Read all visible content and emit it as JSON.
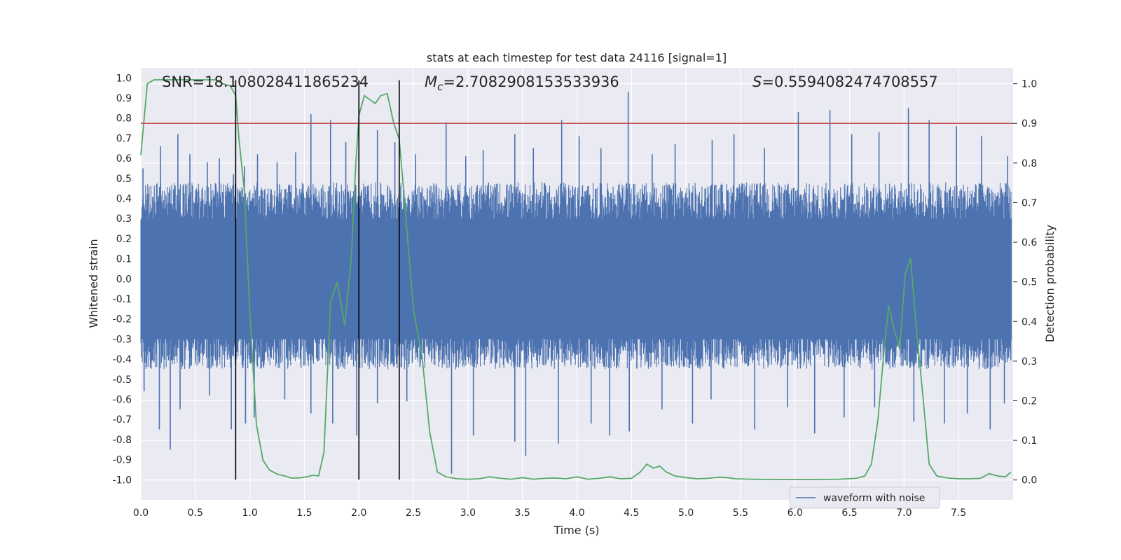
{
  "chart_data": {
    "type": "line",
    "title": "stats at each timestep for test data 24116 [signal=1]",
    "xlabel": "Time (s)",
    "ylabel": "Whitened strain",
    "y2label": "Detection probability",
    "xlim": [
      0,
      8
    ],
    "ylim": [
      -1.1,
      1.05
    ],
    "y2lim": [
      -0.05,
      1.04
    ],
    "xticks": [
      "0.0",
      "0.5",
      "1.0",
      "1.5",
      "2.0",
      "2.5",
      "3.0",
      "3.5",
      "4.0",
      "4.5",
      "5.0",
      "5.5",
      "6.0",
      "6.5",
      "7.0",
      "7.5"
    ],
    "yticks": [
      "1.0",
      "0.9",
      "0.8",
      "0.7",
      "0.6",
      "0.5",
      "0.4",
      "0.3",
      "0.2",
      "0.1",
      "0.0",
      "-0.1",
      "-0.2",
      "-0.3",
      "-0.4",
      "-0.5",
      "-0.6",
      "-0.7",
      "-0.8",
      "-0.9",
      "-1.0"
    ],
    "y2ticks": [
      "1.0",
      "0.9",
      "0.8",
      "0.7",
      "0.6",
      "0.5",
      "0.4",
      "0.3",
      "0.2",
      "0.1",
      "0.0"
    ],
    "grid": true,
    "legend_position": "bottom-right",
    "annotations": {
      "snr": "SNR=18.108028411865234",
      "mc_symbol": "M",
      "mc_sub": "c",
      "mc_value": "=2.7082908153533936",
      "s_symbol": "S",
      "s_value": "=0.5594082474708557"
    },
    "threshold": {
      "y2": 0.9,
      "color": "#c44e52"
    },
    "vlines": [
      0.87,
      2.0,
      2.37
    ],
    "colors": {
      "waveform": "#4c72b0",
      "probability": "#55a868",
      "threshold": "#c44e52",
      "vline": "#000000"
    },
    "series": [
      {
        "name": "waveform with noise",
        "envelope": {
          "dense_range": [
            -0.45,
            0.48
          ],
          "spike_peaks_high": [
            {
              "x": 0.02,
              "y": 0.55
            },
            {
              "x": 0.18,
              "y": 0.66
            },
            {
              "x": 0.34,
              "y": 0.72
            },
            {
              "x": 0.45,
              "y": 0.62
            },
            {
              "x": 0.61,
              "y": 0.58
            },
            {
              "x": 0.72,
              "y": 0.6
            },
            {
              "x": 0.85,
              "y": 0.52
            },
            {
              "x": 0.95,
              "y": 0.56
            },
            {
              "x": 1.07,
              "y": 0.62
            },
            {
              "x": 1.25,
              "y": 0.58
            },
            {
              "x": 1.42,
              "y": 0.63
            },
            {
              "x": 1.56,
              "y": 0.82
            },
            {
              "x": 1.74,
              "y": 0.79
            },
            {
              "x": 1.88,
              "y": 0.68
            },
            {
              "x": 2.17,
              "y": 0.74
            },
            {
              "x": 2.33,
              "y": 0.68
            },
            {
              "x": 2.52,
              "y": 0.62
            },
            {
              "x": 2.8,
              "y": 0.78
            },
            {
              "x": 2.98,
              "y": 0.61
            },
            {
              "x": 3.14,
              "y": 0.64
            },
            {
              "x": 3.43,
              "y": 0.72
            },
            {
              "x": 3.6,
              "y": 0.65
            },
            {
              "x": 3.86,
              "y": 0.79
            },
            {
              "x": 4.02,
              "y": 0.71
            },
            {
              "x": 4.22,
              "y": 0.65
            },
            {
              "x": 4.47,
              "y": 0.93
            },
            {
              "x": 4.69,
              "y": 0.62
            },
            {
              "x": 4.9,
              "y": 0.67
            },
            {
              "x": 5.24,
              "y": 0.69
            },
            {
              "x": 5.44,
              "y": 0.72
            },
            {
              "x": 5.72,
              "y": 0.65
            },
            {
              "x": 6.03,
              "y": 0.83
            },
            {
              "x": 6.32,
              "y": 0.84
            },
            {
              "x": 6.52,
              "y": 0.72
            },
            {
              "x": 6.77,
              "y": 0.73
            },
            {
              "x": 7.04,
              "y": 0.85
            },
            {
              "x": 7.23,
              "y": 0.79
            },
            {
              "x": 7.48,
              "y": 0.76
            },
            {
              "x": 7.71,
              "y": 0.71
            },
            {
              "x": 7.95,
              "y": 0.61
            }
          ],
          "spike_peaks_low": [
            {
              "x": 0.03,
              "y": -0.56
            },
            {
              "x": 0.17,
              "y": -0.75
            },
            {
              "x": 0.27,
              "y": -0.85
            },
            {
              "x": 0.36,
              "y": -0.65
            },
            {
              "x": 0.63,
              "y": -0.58
            },
            {
              "x": 0.83,
              "y": -0.75
            },
            {
              "x": 0.96,
              "y": -0.72
            },
            {
              "x": 1.04,
              "y": -0.69
            },
            {
              "x": 1.32,
              "y": -0.6
            },
            {
              "x": 1.56,
              "y": -0.67
            },
            {
              "x": 1.76,
              "y": -0.72
            },
            {
              "x": 1.98,
              "y": -0.78
            },
            {
              "x": 2.17,
              "y": -0.62
            },
            {
              "x": 2.44,
              "y": -0.61
            },
            {
              "x": 2.85,
              "y": -0.97
            },
            {
              "x": 3.05,
              "y": -0.78
            },
            {
              "x": 3.43,
              "y": -0.81
            },
            {
              "x": 3.53,
              "y": -0.88
            },
            {
              "x": 3.83,
              "y": -0.82
            },
            {
              "x": 4.13,
              "y": -0.72
            },
            {
              "x": 4.3,
              "y": -0.78
            },
            {
              "x": 4.48,
              "y": -0.76
            },
            {
              "x": 4.78,
              "y": -0.65
            },
            {
              "x": 5.06,
              "y": -0.72
            },
            {
              "x": 5.23,
              "y": -0.6
            },
            {
              "x": 5.63,
              "y": -0.75
            },
            {
              "x": 5.93,
              "y": -0.64
            },
            {
              "x": 6.18,
              "y": -0.77
            },
            {
              "x": 6.45,
              "y": -0.69
            },
            {
              "x": 6.73,
              "y": -0.64
            },
            {
              "x": 7.09,
              "y": -0.71
            },
            {
              "x": 7.37,
              "y": -0.72
            },
            {
              "x": 7.58,
              "y": -0.67
            },
            {
              "x": 7.79,
              "y": -0.75
            },
            {
              "x": 7.92,
              "y": -0.62
            }
          ]
        }
      },
      {
        "name": "Detection probability",
        "axis": "right",
        "x": [
          0.0,
          0.06,
          0.12,
          0.2,
          0.3,
          0.4,
          0.5,
          0.6,
          0.68,
          0.75,
          0.82,
          0.87,
          0.9,
          0.95,
          1.0,
          1.06,
          1.12,
          1.18,
          1.25,
          1.32,
          1.38,
          1.45,
          1.52,
          1.58,
          1.63,
          1.68,
          1.74,
          1.8,
          1.87,
          1.93,
          1.97,
          2.0,
          2.05,
          2.1,
          2.15,
          2.2,
          2.26,
          2.32,
          2.37,
          2.42,
          2.5,
          2.58,
          2.65,
          2.72,
          2.8,
          2.9,
          3.0,
          3.1,
          3.2,
          3.3,
          3.4,
          3.5,
          3.6,
          3.7,
          3.8,
          3.9,
          4.0,
          4.1,
          4.2,
          4.3,
          4.4,
          4.5,
          4.58,
          4.64,
          4.7,
          4.76,
          4.82,
          4.9,
          5.0,
          5.1,
          5.2,
          5.3,
          5.38,
          5.45,
          5.6,
          5.8,
          6.0,
          6.2,
          6.4,
          6.56,
          6.64,
          6.7,
          6.76,
          6.82,
          6.86,
          6.9,
          6.96,
          7.01,
          7.06,
          7.11,
          7.17,
          7.23,
          7.3,
          7.4,
          7.5,
          7.6,
          7.7,
          7.78,
          7.86,
          7.93,
          7.98
        ],
        "y": [
          0.82,
          1.0,
          1.01,
          1.01,
          1.01,
          1.01,
          1.01,
          1.01,
          1.01,
          1.0,
          0.995,
          0.97,
          0.86,
          0.73,
          0.42,
          0.14,
          0.05,
          0.025,
          0.015,
          0.01,
          0.005,
          0.005,
          0.008,
          0.012,
          0.01,
          0.07,
          0.45,
          0.5,
          0.39,
          0.56,
          0.79,
          0.92,
          0.97,
          0.96,
          0.95,
          0.97,
          0.975,
          0.9,
          0.86,
          0.7,
          0.43,
          0.31,
          0.12,
          0.02,
          0.008,
          0.003,
          0.002,
          0.003,
          0.008,
          0.004,
          0.002,
          0.006,
          0.002,
          0.004,
          0.005,
          0.003,
          0.008,
          0.002,
          0.004,
          0.008,
          0.003,
          0.004,
          0.02,
          0.04,
          0.03,
          0.035,
          0.02,
          0.01,
          0.006,
          0.003,
          0.004,
          0.007,
          0.006,
          0.003,
          0.002,
          0.001,
          0.001,
          0.001,
          0.002,
          0.004,
          0.01,
          0.04,
          0.15,
          0.34,
          0.44,
          0.39,
          0.33,
          0.52,
          0.56,
          0.39,
          0.22,
          0.04,
          0.01,
          0.005,
          0.003,
          0.003,
          0.004,
          0.016,
          0.01,
          0.008,
          0.02
        ]
      }
    ]
  }
}
